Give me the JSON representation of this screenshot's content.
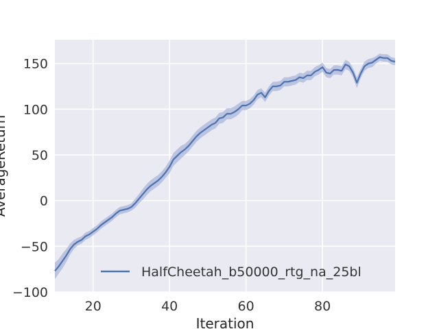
{
  "chart_data": {
    "type": "line",
    "title": "",
    "xlabel": "Iteration",
    "ylabel": "AverageReturn",
    "xlim": [
      10,
      99
    ],
    "ylim": [
      -100,
      176
    ],
    "xticks": [
      20,
      40,
      60,
      80
    ],
    "yticks": [
      -100,
      -50,
      0,
      50,
      100,
      150
    ],
    "xtick_labels": [
      "20",
      "40",
      "60",
      "80"
    ],
    "ytick_labels": [
      "−100",
      "−50",
      "0",
      "50",
      "100",
      "150"
    ],
    "grid": true,
    "legend_position": "lower-right",
    "series": [
      {
        "name": "HalfCheetah_b50000_rtg_na_25bl",
        "color": "#4c72b0",
        "band_color": "#a9b6d8",
        "x": [
          10,
          11,
          12,
          13,
          14,
          15,
          16,
          17,
          18,
          19,
          20,
          21,
          22,
          23,
          24,
          25,
          26,
          27,
          28,
          29,
          30,
          31,
          32,
          33,
          34,
          35,
          36,
          37,
          38,
          39,
          40,
          41,
          42,
          43,
          44,
          45,
          46,
          47,
          48,
          49,
          50,
          51,
          52,
          53,
          54,
          55,
          56,
          57,
          58,
          59,
          60,
          61,
          62,
          63,
          64,
          65,
          66,
          67,
          68,
          69,
          70,
          71,
          72,
          73,
          74,
          75,
          76,
          77,
          78,
          79,
          80,
          81,
          82,
          83,
          84,
          85,
          86,
          87,
          88,
          89,
          90,
          91,
          92,
          93,
          94,
          95,
          96,
          97,
          98,
          99
        ],
        "y": [
          -77,
          -72,
          -66,
          -60,
          -53,
          -48,
          -45,
          -43,
          -39,
          -37,
          -34,
          -31,
          -27,
          -24,
          -21,
          -18,
          -14,
          -11,
          -10,
          -9,
          -7,
          -3,
          2,
          7,
          12,
          16,
          19,
          22,
          26,
          31,
          37,
          45,
          49,
          53,
          56,
          60,
          65,
          70,
          74,
          77,
          80,
          83,
          85,
          90,
          91,
          95,
          95,
          97,
          100,
          104,
          104,
          106,
          110,
          116,
          118,
          113,
          120,
          125,
          125,
          126,
          130,
          130,
          131,
          132,
          135,
          134,
          137,
          137,
          141,
          143,
          146,
          140,
          139,
          143,
          143,
          142,
          149,
          147,
          140,
          129,
          139,
          147,
          150,
          151,
          154,
          157,
          156,
          156,
          153,
          152
        ],
        "band": [
          9,
          8,
          8,
          7,
          6,
          5,
          4,
          4,
          4,
          4,
          4,
          4,
          4,
          4,
          4,
          4,
          4,
          4,
          4,
          4,
          4,
          5,
          5,
          6,
          6,
          6,
          6,
          6,
          6,
          6,
          7,
          7,
          7,
          7,
          6,
          6,
          6,
          6,
          6,
          6,
          6,
          6,
          6,
          6,
          6,
          6,
          6,
          6,
          6,
          5,
          5,
          5,
          5,
          5,
          5,
          5,
          5,
          5,
          5,
          5,
          5,
          5,
          5,
          5,
          5,
          5,
          5,
          5,
          5,
          5,
          5,
          5,
          5,
          5,
          5,
          5,
          5,
          5,
          5,
          6,
          5,
          5,
          5,
          5,
          4,
          4,
          4,
          4,
          4,
          4
        ]
      }
    ]
  }
}
